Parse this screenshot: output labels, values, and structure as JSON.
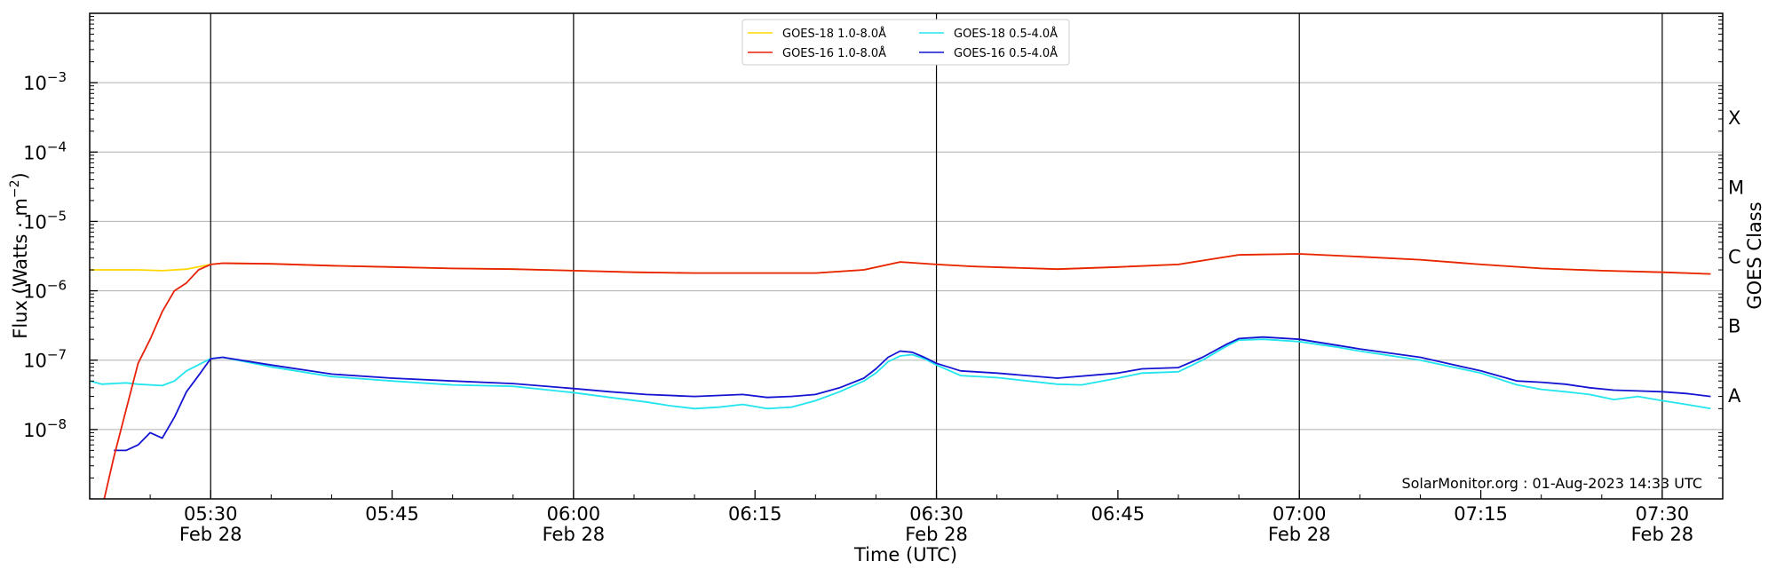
{
  "chart_data": {
    "type": "line",
    "title": "",
    "xlabel": "Time (UTC)",
    "ylabel": "Flux (Watts · m",
    "ylabel_exp": "−2",
    "ylabel_close": ")",
    "right_label": "GOES Class",
    "y_scale": "log",
    "ylim": [
      1e-09,
      0.01
    ],
    "xlim": [
      "05:20",
      "07:35"
    ],
    "grid": "horizontal at decades",
    "legend_position": "top-center",
    "x_ticks": [
      {
        "value": "05:30",
        "label": "05:30",
        "sub": "Feb 28"
      },
      {
        "value": "05:45",
        "label": "05:45",
        "sub": ""
      },
      {
        "value": "06:00",
        "label": "06:00",
        "sub": "Feb 28"
      },
      {
        "value": "06:15",
        "label": "06:15",
        "sub": ""
      },
      {
        "value": "06:30",
        "label": "06:30",
        "sub": "Feb 28"
      },
      {
        "value": "06:45",
        "label": "06:45",
        "sub": ""
      },
      {
        "value": "07:00",
        "label": "07:00",
        "sub": "Feb 28"
      },
      {
        "value": "07:15",
        "label": "07:15",
        "sub": ""
      },
      {
        "value": "07:30",
        "label": "07:30",
        "sub": "Feb 28"
      }
    ],
    "vlines": [
      "05:30",
      "06:00",
      "06:30",
      "07:00",
      "07:30"
    ],
    "y_ticks": [
      {
        "exp": -8,
        "label": "10",
        "sup": "−8"
      },
      {
        "exp": -7,
        "label": "10",
        "sup": "−7"
      },
      {
        "exp": -6,
        "label": "10",
        "sup": "−6"
      },
      {
        "exp": -5,
        "label": "10",
        "sup": "−5"
      },
      {
        "exp": -4,
        "label": "10",
        "sup": "−4"
      },
      {
        "exp": -3,
        "label": "10",
        "sup": "−3"
      }
    ],
    "goes_classes": [
      {
        "label": "A",
        "exp": -7.5
      },
      {
        "label": "B",
        "exp": -6.5
      },
      {
        "label": "C",
        "exp": -5.5
      },
      {
        "label": "M",
        "exp": -4.5
      },
      {
        "label": "X",
        "exp": -3.5
      }
    ],
    "series": [
      {
        "name": "GOES-18 1.0-8.0Å",
        "color": "#ffd700",
        "points": [
          [
            "05:20",
            2e-06
          ],
          [
            "05:22",
            2e-06
          ],
          [
            "05:24",
            2e-06
          ],
          [
            "05:26",
            1.95e-06
          ],
          [
            "05:28",
            2.05e-06
          ],
          [
            "05:30",
            2.4e-06
          ],
          [
            "05:31",
            2.5e-06
          ],
          [
            "05:35",
            2.45e-06
          ],
          [
            "05:40",
            2.3e-06
          ],
          [
            "05:45",
            2.2e-06
          ],
          [
            "05:50",
            2.1e-06
          ],
          [
            "05:55",
            2.05e-06
          ],
          [
            "06:00",
            1.95e-06
          ],
          [
            "06:05",
            1.85e-06
          ],
          [
            "06:10",
            1.8e-06
          ],
          [
            "06:15",
            1.8e-06
          ],
          [
            "06:20",
            1.8e-06
          ],
          [
            "06:24",
            2e-06
          ],
          [
            "06:27",
            2.6e-06
          ],
          [
            "06:30",
            2.4e-06
          ],
          [
            "06:33",
            2.25e-06
          ],
          [
            "06:40",
            2.05e-06
          ],
          [
            "06:45",
            2.2e-06
          ],
          [
            "06:50",
            2.4e-06
          ],
          [
            "06:53",
            2.9e-06
          ],
          [
            "06:55",
            3.3e-06
          ],
          [
            "07:00",
            3.4e-06
          ],
          [
            "07:05",
            3.1e-06
          ],
          [
            "07:10",
            2.8e-06
          ],
          [
            "07:15",
            2.4e-06
          ],
          [
            "07:20",
            2.1e-06
          ],
          [
            "07:25",
            1.95e-06
          ],
          [
            "07:30",
            1.85e-06
          ],
          [
            "07:34",
            1.75e-06
          ]
        ]
      },
      {
        "name": "GOES-16 1.0-8.0Å",
        "color": "#e8220a",
        "points": [
          [
            "05:21",
            7e-10
          ],
          [
            "05:22",
            4e-09
          ],
          [
            "05:24",
            9e-08
          ],
          [
            "05:25",
            2e-07
          ],
          [
            "05:26",
            5e-07
          ],
          [
            "05:27",
            1e-06
          ],
          [
            "05:28",
            1.3e-06
          ],
          [
            "05:29",
            2e-06
          ],
          [
            "05:30",
            2.4e-06
          ],
          [
            "05:31",
            2.5e-06
          ],
          [
            "05:35",
            2.45e-06
          ],
          [
            "05:40",
            2.3e-06
          ],
          [
            "05:45",
            2.2e-06
          ],
          [
            "05:50",
            2.1e-06
          ],
          [
            "05:55",
            2.05e-06
          ],
          [
            "06:00",
            1.95e-06
          ],
          [
            "06:05",
            1.85e-06
          ],
          [
            "06:10",
            1.8e-06
          ],
          [
            "06:15",
            1.8e-06
          ],
          [
            "06:20",
            1.8e-06
          ],
          [
            "06:24",
            2e-06
          ],
          [
            "06:27",
            2.6e-06
          ],
          [
            "06:30",
            2.4e-06
          ],
          [
            "06:33",
            2.25e-06
          ],
          [
            "06:40",
            2.05e-06
          ],
          [
            "06:45",
            2.2e-06
          ],
          [
            "06:50",
            2.4e-06
          ],
          [
            "06:53",
            2.9e-06
          ],
          [
            "06:55",
            3.3e-06
          ],
          [
            "07:00",
            3.4e-06
          ],
          [
            "07:05",
            3.1e-06
          ],
          [
            "07:10",
            2.8e-06
          ],
          [
            "07:15",
            2.4e-06
          ],
          [
            "07:20",
            2.1e-06
          ],
          [
            "07:25",
            1.95e-06
          ],
          [
            "07:30",
            1.85e-06
          ],
          [
            "07:34",
            1.75e-06
          ]
        ]
      },
      {
        "name": "GOES-18 0.5-4.0Å",
        "color": "#22e5ee",
        "points": [
          [
            "05:20",
            5e-08
          ],
          [
            "05:21",
            4.5e-08
          ],
          [
            "05:23",
            4.7e-08
          ],
          [
            "05:24",
            4.5e-08
          ],
          [
            "05:26",
            4.3e-08
          ],
          [
            "05:27",
            5e-08
          ],
          [
            "05:28",
            7e-08
          ],
          [
            "05:30",
            1.05e-07
          ],
          [
            "05:31",
            1.1e-07
          ],
          [
            "05:35",
            8e-08
          ],
          [
            "05:40",
            5.8e-08
          ],
          [
            "05:45",
            5e-08
          ],
          [
            "05:50",
            4.4e-08
          ],
          [
            "05:55",
            4.2e-08
          ],
          [
            "06:00",
            3.4e-08
          ],
          [
            "06:03",
            2.9e-08
          ],
          [
            "06:06",
            2.5e-08
          ],
          [
            "06:08",
            2.2e-08
          ],
          [
            "06:10",
            2e-08
          ],
          [
            "06:12",
            2.1e-08
          ],
          [
            "06:14",
            2.3e-08
          ],
          [
            "06:16",
            2e-08
          ],
          [
            "06:18",
            2.1e-08
          ],
          [
            "06:20",
            2.6e-08
          ],
          [
            "06:22",
            3.5e-08
          ],
          [
            "06:24",
            5e-08
          ],
          [
            "06:25",
            6.5e-08
          ],
          [
            "06:26",
            9.5e-08
          ],
          [
            "06:27",
            1.15e-07
          ],
          [
            "06:28",
            1.2e-07
          ],
          [
            "06:29",
            1.05e-07
          ],
          [
            "06:30",
            8.5e-08
          ],
          [
            "06:32",
            6e-08
          ],
          [
            "06:35",
            5.6e-08
          ],
          [
            "06:40",
            4.5e-08
          ],
          [
            "06:42",
            4.4e-08
          ],
          [
            "06:45",
            5.5e-08
          ],
          [
            "06:47",
            6.5e-08
          ],
          [
            "06:50",
            6.8e-08
          ],
          [
            "06:52",
            1e-07
          ],
          [
            "06:54",
            1.6e-07
          ],
          [
            "06:55",
            1.95e-07
          ],
          [
            "06:57",
            2e-07
          ],
          [
            "07:00",
            1.85e-07
          ],
          [
            "07:03",
            1.55e-07
          ],
          [
            "07:05",
            1.35e-07
          ],
          [
            "07:10",
            1e-07
          ],
          [
            "07:15",
            6.5e-08
          ],
          [
            "07:18",
            4.4e-08
          ],
          [
            "07:20",
            3.8e-08
          ],
          [
            "07:22",
            3.5e-08
          ],
          [
            "07:24",
            3.2e-08
          ],
          [
            "07:26",
            2.7e-08
          ],
          [
            "07:28",
            3e-08
          ],
          [
            "07:30",
            2.6e-08
          ],
          [
            "07:32",
            2.3e-08
          ],
          [
            "07:34",
            2e-08
          ]
        ]
      },
      {
        "name": "GOES-16 0.5-4.0Å",
        "color": "#1414d2",
        "points": [
          [
            "05:22",
            5e-09
          ],
          [
            "05:23",
            5e-09
          ],
          [
            "05:24",
            6e-09
          ],
          [
            "05:25",
            9e-09
          ],
          [
            "05:26",
            7.5e-09
          ],
          [
            "05:27",
            1.5e-08
          ],
          [
            "05:28",
            3.5e-08
          ],
          [
            "05:29",
            6e-08
          ],
          [
            "05:30",
            1.05e-07
          ],
          [
            "05:31",
            1.1e-07
          ],
          [
            "05:35",
            8.5e-08
          ],
          [
            "05:40",
            6.3e-08
          ],
          [
            "05:45",
            5.5e-08
          ],
          [
            "05:50",
            5e-08
          ],
          [
            "05:55",
            4.6e-08
          ],
          [
            "06:00",
            3.9e-08
          ],
          [
            "06:03",
            3.5e-08
          ],
          [
            "06:06",
            3.2e-08
          ],
          [
            "06:10",
            3e-08
          ],
          [
            "06:14",
            3.2e-08
          ],
          [
            "06:16",
            2.9e-08
          ],
          [
            "06:18",
            3e-08
          ],
          [
            "06:20",
            3.2e-08
          ],
          [
            "06:22",
            4e-08
          ],
          [
            "06:24",
            5.5e-08
          ],
          [
            "06:25",
            7.5e-08
          ],
          [
            "06:26",
            1.1e-07
          ],
          [
            "06:27",
            1.35e-07
          ],
          [
            "06:28",
            1.3e-07
          ],
          [
            "06:29",
            1.1e-07
          ],
          [
            "06:30",
            9e-08
          ],
          [
            "06:32",
            7e-08
          ],
          [
            "06:35",
            6.5e-08
          ],
          [
            "06:40",
            5.5e-08
          ],
          [
            "06:45",
            6.5e-08
          ],
          [
            "06:47",
            7.5e-08
          ],
          [
            "06:50",
            7.8e-08
          ],
          [
            "06:52",
            1.1e-07
          ],
          [
            "06:54",
            1.7e-07
          ],
          [
            "06:55",
            2.05e-07
          ],
          [
            "06:57",
            2.15e-07
          ],
          [
            "07:00",
            2e-07
          ],
          [
            "07:03",
            1.65e-07
          ],
          [
            "07:05",
            1.45e-07
          ],
          [
            "07:10",
            1.1e-07
          ],
          [
            "07:15",
            7e-08
          ],
          [
            "07:18",
            5e-08
          ],
          [
            "07:20",
            4.8e-08
          ],
          [
            "07:22",
            4.5e-08
          ],
          [
            "07:24",
            4e-08
          ],
          [
            "07:26",
            3.7e-08
          ],
          [
            "07:28",
            3.6e-08
          ],
          [
            "07:30",
            3.5e-08
          ],
          [
            "07:32",
            3.3e-08
          ],
          [
            "07:34",
            3e-08
          ]
        ]
      }
    ],
    "credit": "SolarMonitor.org : 01-Aug-2023 14:33 UTC"
  }
}
